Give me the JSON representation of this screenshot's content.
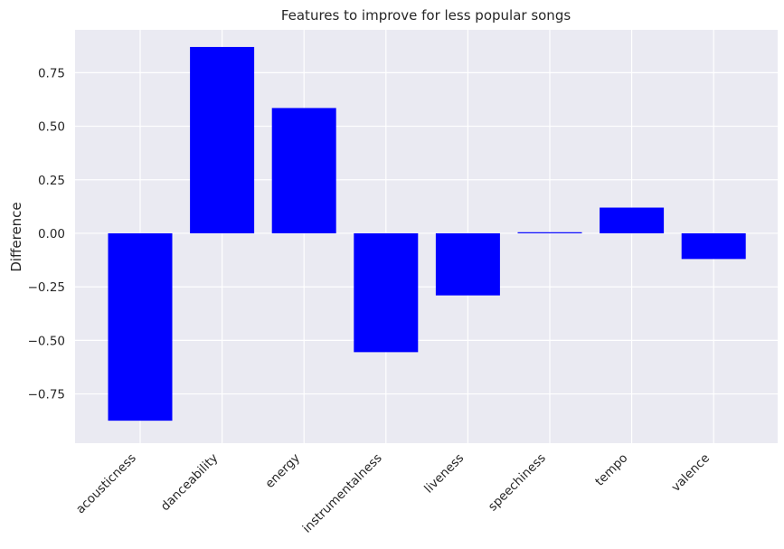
{
  "chart_data": {
    "type": "bar",
    "title": "Features to improve for less popular songs",
    "xlabel": "",
    "ylabel": "Difference",
    "categories": [
      "acousticness",
      "danceability",
      "energy",
      "instrumentalness",
      "liveness",
      "speechiness",
      "tempo",
      "valence"
    ],
    "values": [
      -0.875,
      0.87,
      0.585,
      -0.555,
      -0.29,
      0.005,
      0.12,
      -0.12
    ],
    "ylim": [
      -0.98,
      0.95
    ],
    "yticks": [
      -0.75,
      -0.5,
      -0.25,
      0.0,
      0.25,
      0.5,
      0.75
    ],
    "ytick_labels": [
      "−0.75",
      "−0.50",
      "−0.25",
      "0.00",
      "0.25",
      "0.50",
      "0.75"
    ],
    "bar_color": "#0000ff",
    "background_color": "#eaeaf2",
    "grid_color": "#ffffff",
    "grid": true
  }
}
